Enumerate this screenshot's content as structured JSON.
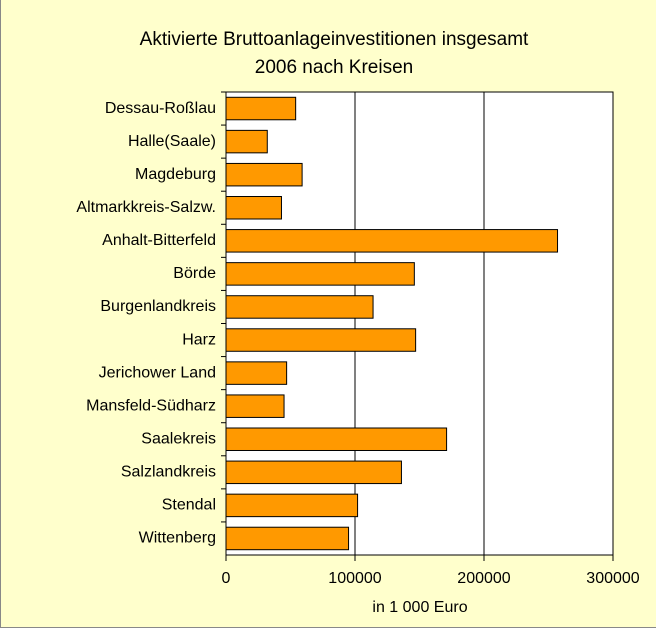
{
  "chart_data": {
    "type": "barh",
    "title": [
      "Aktivierte Bruttoanlageinvestitionen insgesamt",
      "2006 nach Kreisen"
    ],
    "x_label": "in 1 000 Euro",
    "categories": [
      "Dessau-Roßlau",
      "Halle(Saale)",
      "Magdeburg",
      "Altmarkkreis-Salzw.",
      "Anhalt-Bitterfeld",
      "Börde",
      "Burgenlandkreis",
      "Harz",
      "Jerichower Land",
      "Mansfeld-Südharz",
      "Saalekreis",
      "Salzlandkreis",
      "Stendal",
      "Wittenberg"
    ],
    "values": [
      54000,
      32000,
      59000,
      43000,
      257000,
      146000,
      114000,
      147000,
      47000,
      45000,
      171000,
      136000,
      102000,
      95000
    ],
    "color": "#ff9900",
    "xlim": [
      0,
      300000
    ],
    "xticks": [
      0,
      100000,
      200000,
      300000
    ],
    "grid": true
  }
}
